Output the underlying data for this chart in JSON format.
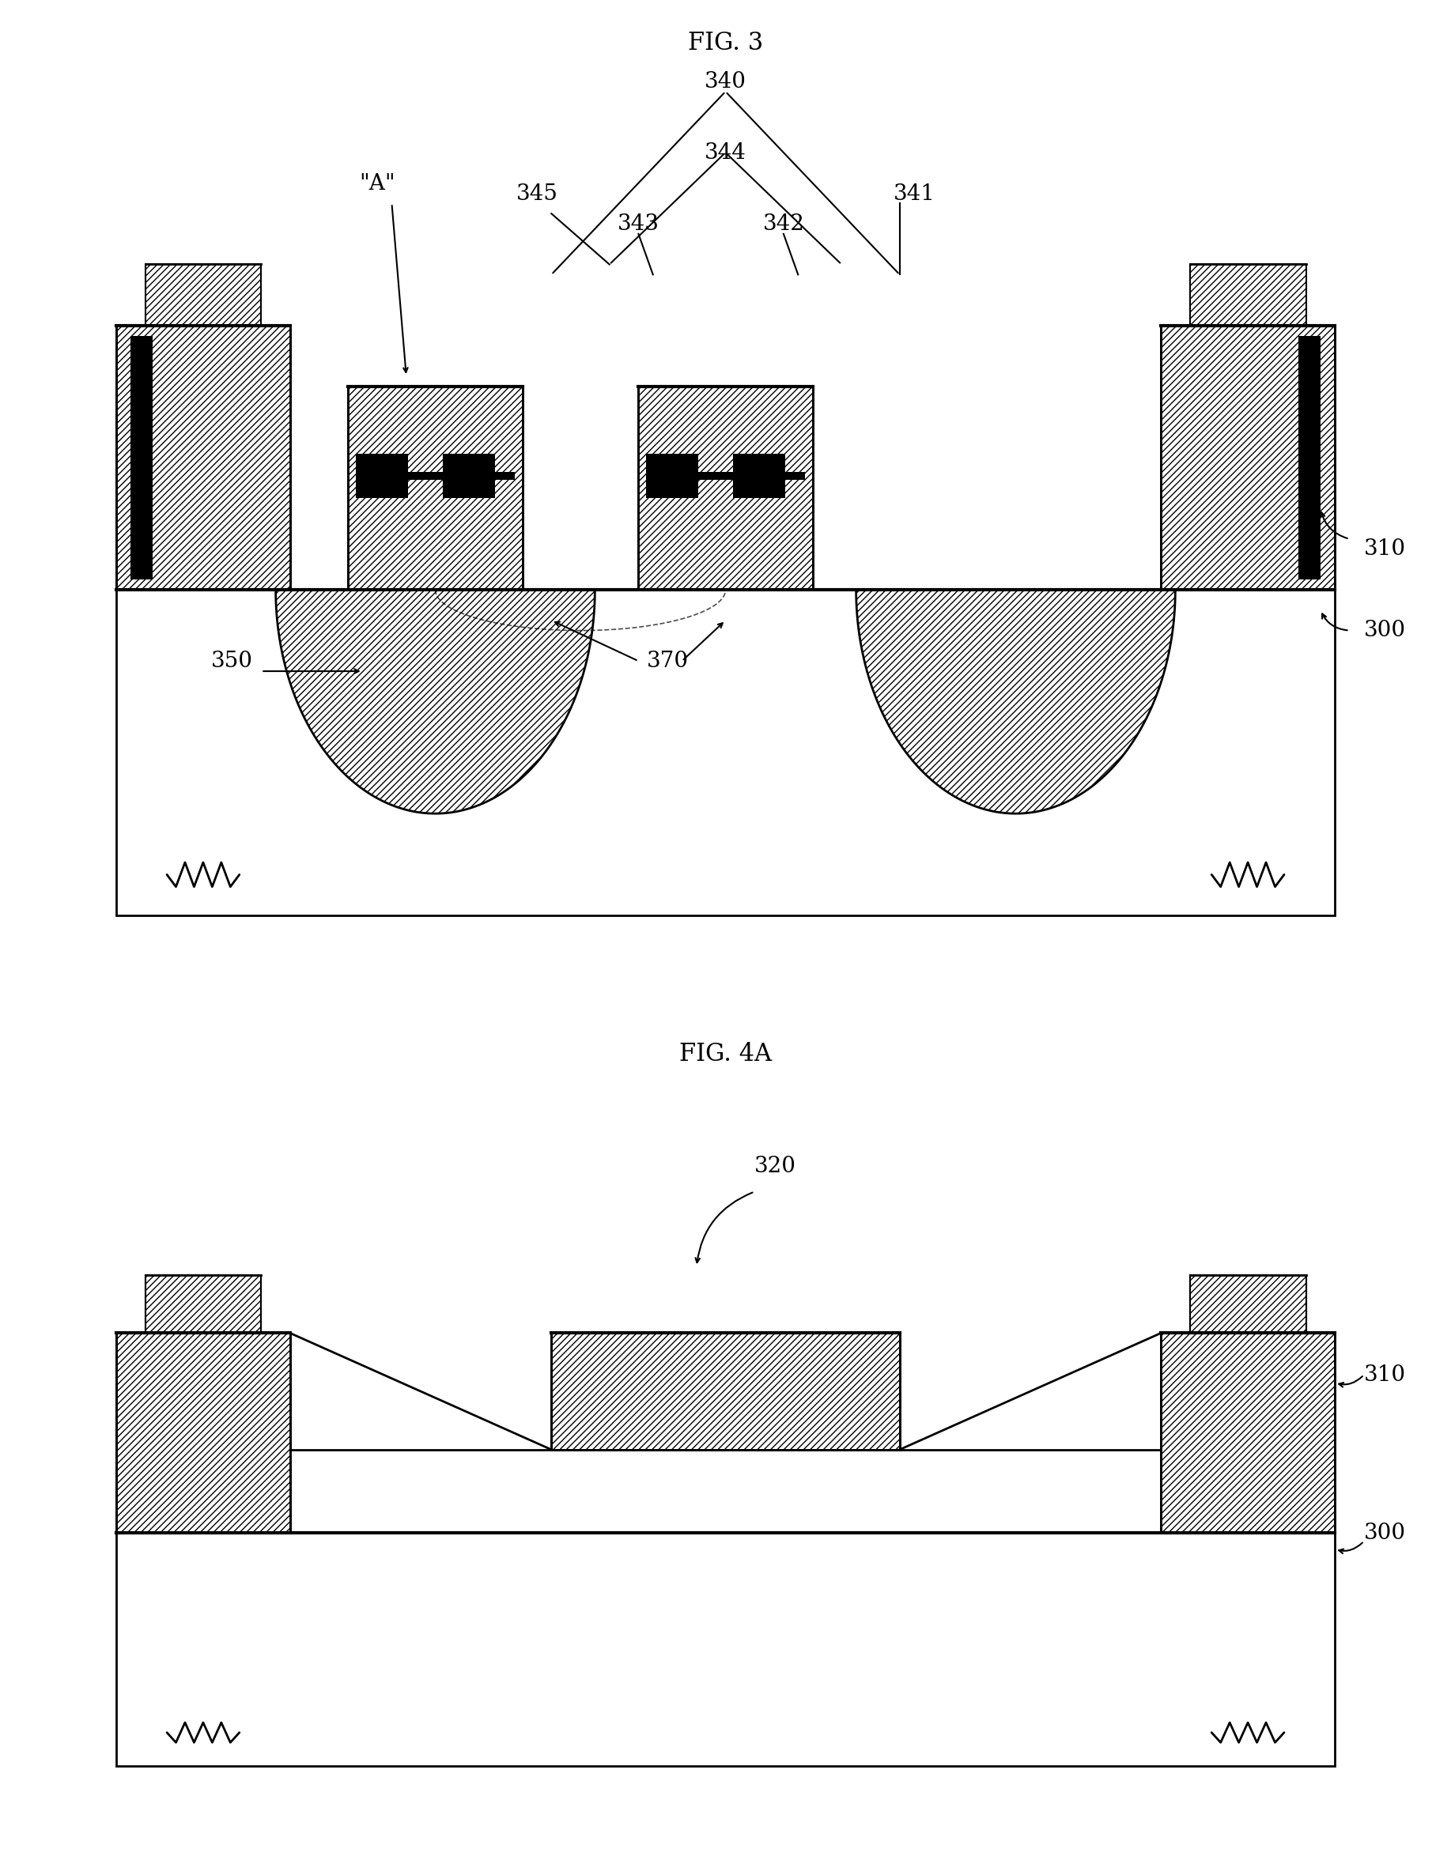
{
  "fig3_title": "FIG. 3",
  "fig4a_title": "FIG. 4A",
  "bg_color": "#ffffff",
  "label_fontsize": 20,
  "title_fontsize": 22
}
